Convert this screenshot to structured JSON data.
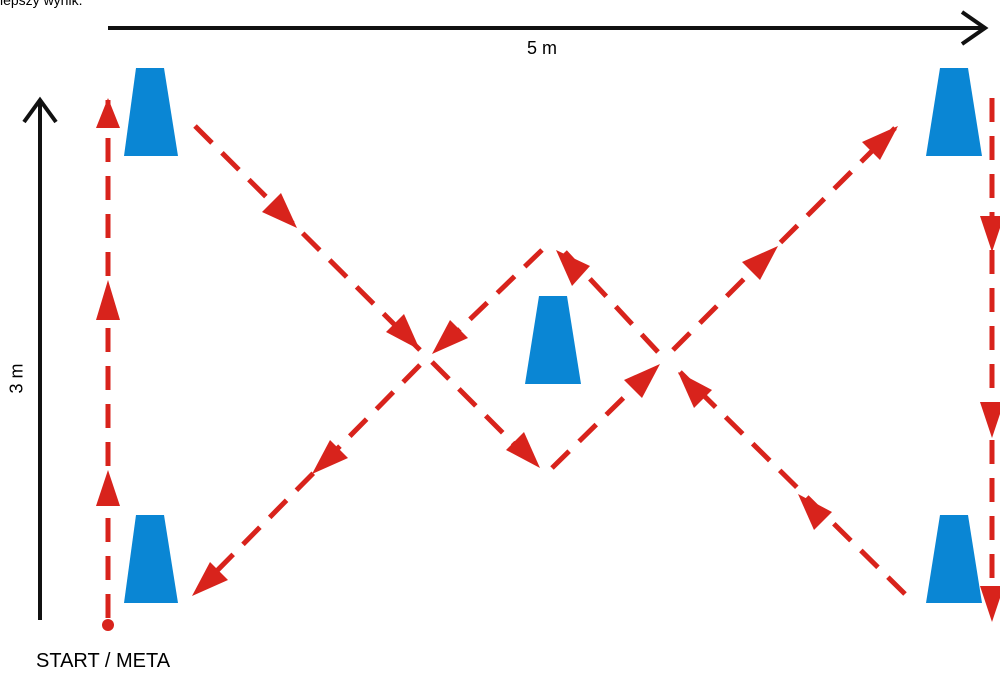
{
  "top_caption": "lepszy wynik.",
  "labels": {
    "width": "5 m",
    "height": "3 m",
    "start": "START / META"
  },
  "colors": {
    "cone": "#0a86d4",
    "path": "#d8231c",
    "dimension": "#111111"
  },
  "icons": {
    "cone": "cone-icon",
    "dimension_arrow": "dimension-arrow-icon",
    "path_arrow": "dashed-arrow-icon"
  }
}
